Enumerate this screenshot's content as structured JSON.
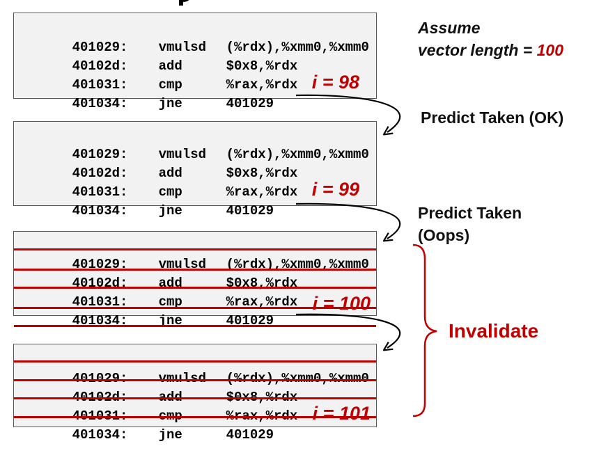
{
  "blocks": [
    {
      "iteration": "i = 98",
      "invalidated": false,
      "lines": [
        {
          "addr": "401029:",
          "op": "vmulsd",
          "args": "(%rdx),%xmm0,%xmm0"
        },
        {
          "addr": "40102d:",
          "op": "add",
          "args": "$0x8,%rdx"
        },
        {
          "addr": "401031:",
          "op": "cmp",
          "args": "%rax,%rdx"
        },
        {
          "addr": "401034:",
          "op": "jne",
          "args": "401029"
        }
      ]
    },
    {
      "iteration": "i = 99",
      "invalidated": false,
      "lines": [
        {
          "addr": "401029:",
          "op": "vmulsd",
          "args": "(%rdx),%xmm0,%xmm0"
        },
        {
          "addr": "40102d:",
          "op": "add",
          "args": "$0x8,%rdx"
        },
        {
          "addr": "401031:",
          "op": "cmp",
          "args": "%rax,%rdx"
        },
        {
          "addr": "401034:",
          "op": "jne",
          "args": "401029"
        }
      ]
    },
    {
      "iteration": "i = 100",
      "invalidated": true,
      "lines": [
        {
          "addr": "401029:",
          "op": "vmulsd",
          "args": "(%rdx),%xmm0,%xmm0"
        },
        {
          "addr": "40102d:",
          "op": "add",
          "args": "$0x8,%rdx"
        },
        {
          "addr": "401031:",
          "op": "cmp",
          "args": "%rax,%rdx"
        },
        {
          "addr": "401034:",
          "op": "jne",
          "args": "401029"
        }
      ]
    },
    {
      "iteration": "i = 101",
      "invalidated": true,
      "lines": [
        {
          "addr": "401029:",
          "op": "vmulsd",
          "args": "(%rdx),%xmm0,%xmm0"
        },
        {
          "addr": "40102d:",
          "op": "add",
          "args": "$0x8,%rdx"
        },
        {
          "addr": "401031:",
          "op": "cmp",
          "args": "%rax,%rdx"
        },
        {
          "addr": "401034:",
          "op": "jne",
          "args": "401029"
        }
      ]
    }
  ],
  "assume": {
    "line1": "Assume",
    "line2_prefix": "vector length = ",
    "line2_value": "100"
  },
  "predict_1": "Predict Taken (OK)",
  "predict_2_line1": "Predict Taken",
  "predict_2_line2": "(Oops)",
  "invalidate": "Invalidate",
  "colors": {
    "accent_red": "#c00000",
    "block_fill": "#f2f2f2",
    "block_border": "#555555"
  }
}
